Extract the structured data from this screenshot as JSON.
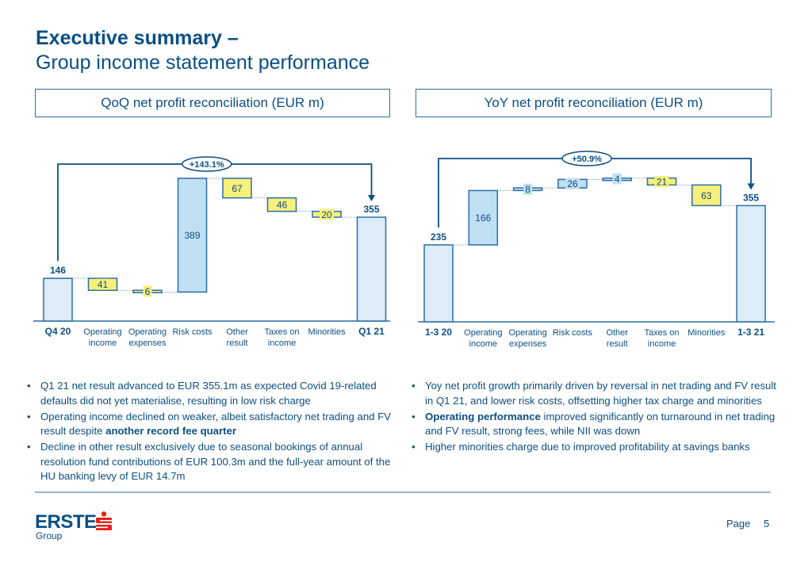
{
  "header": {
    "title_line1": "Executive summary –",
    "title_line2": "Group income statement performance"
  },
  "panels": {
    "left_title": "QoQ net profit reconciliation (EUR m)",
    "right_title": "YoY net profit reconciliation (EUR m)"
  },
  "colors": {
    "primary": "#0b4f84",
    "total_bar": "#dcecf8",
    "positive_bar": "#bfdff3",
    "negative_bar": "#f7f07a",
    "border": "#2b6ea8"
  },
  "chart_data": [
    {
      "type": "bar",
      "subtype": "waterfall",
      "title": "QoQ net profit reconciliation (EUR m)",
      "categories": [
        "Q4 20",
        "Operating income",
        "Operating expenses",
        "Risk costs",
        "Other result",
        "Taxes on income",
        "Minorities",
        "Q1 21"
      ],
      "category_lines": [
        [
          "Q4 20"
        ],
        [
          "Operating",
          "income"
        ],
        [
          "Operating",
          "expenses"
        ],
        [
          "Risk costs"
        ],
        [
          "Other",
          "result"
        ],
        [
          "Taxes on",
          "income"
        ],
        [
          "Minorities"
        ],
        [
          "Q1 21"
        ]
      ],
      "values": [
        146,
        -41,
        -6,
        389,
        -67,
        -46,
        -20,
        355
      ],
      "kinds": [
        "total",
        "negative",
        "negative",
        "positive",
        "negative",
        "negative",
        "negative",
        "total"
      ],
      "labels": [
        "146",
        "41",
        "6",
        "389",
        "67",
        "46",
        "20",
        "355"
      ],
      "change_label": "+143.1%",
      "ylim": [
        0,
        420
      ]
    },
    {
      "type": "bar",
      "subtype": "waterfall",
      "title": "YoY net profit reconciliation (EUR m)",
      "categories": [
        "1-3 20",
        "Operating income",
        "Operating expenses",
        "Risk costs",
        "Other result",
        "Taxes on income",
        "Minorities",
        "1-3 21"
      ],
      "category_lines": [
        [
          "1-3 20"
        ],
        [
          "Operating",
          "income"
        ],
        [
          "Operating",
          "expenses"
        ],
        [
          "Risk costs"
        ],
        [
          "Other",
          "result"
        ],
        [
          "Taxes on",
          "income"
        ],
        [
          "Minorities"
        ],
        [
          "1-3 21"
        ]
      ],
      "values": [
        235,
        166,
        8,
        26,
        4,
        -21,
        -63,
        355
      ],
      "kinds": [
        "total",
        "positive",
        "positive",
        "positive",
        "positive",
        "negative",
        "negative",
        "total"
      ],
      "labels": [
        "235",
        "166",
        "8",
        "26",
        "4",
        "21",
        "63",
        "355"
      ],
      "change_label": "+50.9%",
      "ylim": [
        0,
        420
      ]
    }
  ],
  "bullets_left": [
    {
      "parts": [
        {
          "t": "Q1 21 net result advanced to EUR 355.1m as expected Covid 19-related defaults did not yet materialise, resulting in low risk charge",
          "b": false
        }
      ]
    },
    {
      "parts": [
        {
          "t": "Operating income declined on weaker, albeit satisfactory net trading and FV result despite ",
          "b": false
        },
        {
          "t": "another record fee quarter",
          "b": true
        }
      ]
    },
    {
      "parts": [
        {
          "t": "Decline in other result exclusively due to seasonal bookings of annual resolution fund contributions of EUR 100.3m and the full-year amount of the HU banking levy of EUR 14.7m",
          "b": false
        }
      ]
    }
  ],
  "bullets_right": [
    {
      "parts": [
        {
          "t": "Yoy net profit growth primarily driven by reversal in net trading and FV result in Q1 21, and lower risk costs, offsetting higher tax charge and minorities",
          "b": false
        }
      ]
    },
    {
      "parts": [
        {
          "t": "Operating performance",
          "b": true
        },
        {
          "t": " improved significantly on turnaround in net trading and FV result, strong fees, while NII was down",
          "b": false
        }
      ]
    },
    {
      "parts": [
        {
          "t": "Higher minorities charge due to improved profitability at savings banks",
          "b": false
        }
      ]
    }
  ],
  "footer": {
    "logo_text": "ERSTE",
    "logo_sub": "Group",
    "page_label": "Page",
    "page_number": "5"
  }
}
